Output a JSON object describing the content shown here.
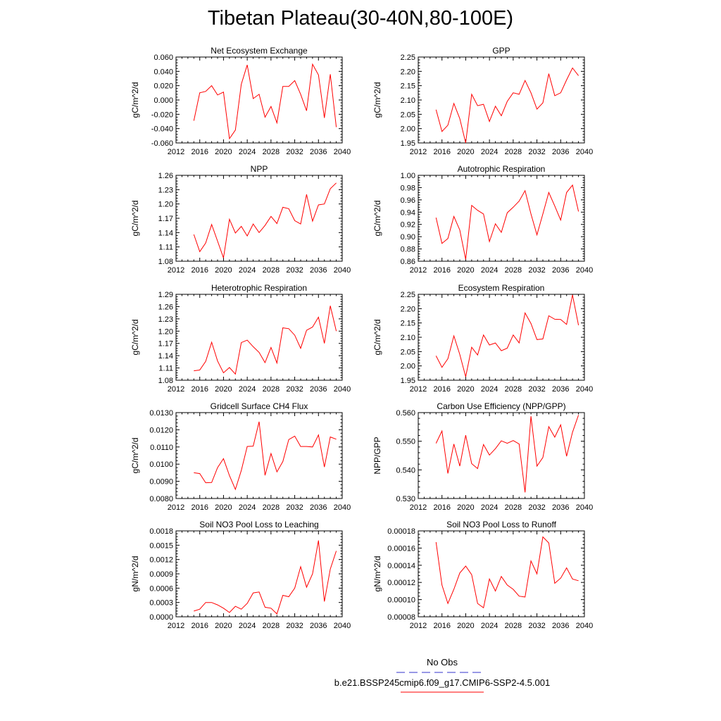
{
  "title": "Tibetan Plateau(30-40N,80-100E)",
  "legend": {
    "obs_label": "No Obs",
    "model_label": "b.e21.BSSP245cmip6.f09_g17.CMIP6-SSP2-4.5.001",
    "obs_color": "#3333cc",
    "model_color": "#ff0000"
  },
  "chart_data": [
    {
      "type": "line",
      "title": "Net Ecosystem Exchange",
      "ylabel": "gC/m^2/d",
      "xlim": [
        2012,
        2040
      ],
      "ylim": [
        -0.06,
        0.06
      ],
      "xticks": [
        "2012",
        "2016",
        "2020",
        "2024",
        "2028",
        "2032",
        "2036",
        "2040"
      ],
      "yticks": [
        "-0.060",
        "-0.040",
        "-0.020",
        "0.000",
        "0.020",
        "0.040",
        "0.060"
      ],
      "x": [
        2015,
        2016,
        2017,
        2018,
        2019,
        2020,
        2021,
        2022,
        2023,
        2024,
        2025,
        2026,
        2027,
        2028,
        2029,
        2030,
        2031,
        2032,
        2033,
        2034,
        2035,
        2036,
        2037,
        2038,
        2039
      ],
      "series": [
        {
          "values": [
            -0.029,
            0.01,
            0.012,
            0.02,
            0.007,
            0.011,
            -0.054,
            -0.042,
            0.022,
            0.049,
            0.002,
            0.008,
            -0.024,
            -0.009,
            -0.032,
            0.019,
            0.019,
            0.027,
            0.008,
            -0.015,
            0.05,
            0.035,
            -0.025,
            0.036,
            -0.038
          ],
          "color": "#ff0000"
        }
      ]
    },
    {
      "type": "line",
      "title": "GPP",
      "ylabel": "gC/m^2/d",
      "xlim": [
        2012,
        2040
      ],
      "ylim": [
        1.95,
        2.25
      ],
      "xticks": [
        "2012",
        "2016",
        "2020",
        "2024",
        "2028",
        "2032",
        "2036",
        "2040"
      ],
      "yticks": [
        "1.95",
        "2.00",
        "2.05",
        "2.10",
        "2.15",
        "2.20",
        "2.25"
      ],
      "x": [
        2015,
        2016,
        2017,
        2018,
        2019,
        2020,
        2021,
        2022,
        2023,
        2024,
        2025,
        2026,
        2027,
        2028,
        2029,
        2030,
        2031,
        2032,
        2033,
        2034,
        2035,
        2036,
        2037,
        2038,
        2039
      ],
      "series": [
        {
          "values": [
            2.066,
            1.99,
            2.012,
            2.088,
            2.035,
            1.95,
            2.12,
            2.08,
            2.085,
            2.025,
            2.078,
            2.045,
            2.095,
            2.125,
            2.12,
            2.168,
            2.125,
            2.068,
            2.09,
            2.192,
            2.115,
            2.125,
            2.17,
            2.212,
            2.185
          ],
          "color": "#ff0000"
        }
      ]
    },
    {
      "type": "line",
      "title": "NPP",
      "ylabel": "gC/m^2/d",
      "xlim": [
        2012,
        2040
      ],
      "ylim": [
        1.08,
        1.26
      ],
      "xticks": [
        "2012",
        "2016",
        "2020",
        "2024",
        "2028",
        "2032",
        "2036",
        "2040"
      ],
      "yticks": [
        "1.08",
        "1.11",
        "1.14",
        "1.17",
        "1.20",
        "1.23",
        "1.26"
      ],
      "x": [
        2015,
        2016,
        2017,
        2018,
        2019,
        2020,
        2021,
        2022,
        2023,
        2024,
        2025,
        2026,
        2027,
        2028,
        2029,
        2030,
        2031,
        2032,
        2033,
        2034,
        2035,
        2036,
        2037,
        2038,
        2039
      ],
      "series": [
        {
          "values": [
            1.136,
            1.1,
            1.118,
            1.157,
            1.122,
            1.087,
            1.168,
            1.139,
            1.153,
            1.133,
            1.158,
            1.14,
            1.155,
            1.174,
            1.159,
            1.193,
            1.19,
            1.165,
            1.158,
            1.22,
            1.164,
            1.198,
            1.2,
            1.232,
            1.244
          ],
          "color": "#ff0000"
        }
      ]
    },
    {
      "type": "line",
      "title": "Autotrophic Respiration",
      "ylabel": "gC/m^2/d",
      "xlim": [
        2012,
        2040
      ],
      "ylim": [
        0.86,
        1.0
      ],
      "xticks": [
        "2012",
        "2016",
        "2020",
        "2024",
        "2028",
        "2032",
        "2036",
        "2040"
      ],
      "yticks": [
        "0.86",
        "0.88",
        "0.90",
        "0.92",
        "0.94",
        "0.96",
        "0.98",
        "1.00"
      ],
      "x": [
        2015,
        2016,
        2017,
        2018,
        2019,
        2020,
        2021,
        2022,
        2023,
        2024,
        2025,
        2026,
        2027,
        2028,
        2029,
        2030,
        2031,
        2032,
        2033,
        2034,
        2035,
        2036,
        2037,
        2038,
        2039
      ],
      "series": [
        {
          "values": [
            0.931,
            0.889,
            0.897,
            0.933,
            0.911,
            0.863,
            0.951,
            0.943,
            0.937,
            0.892,
            0.921,
            0.907,
            0.939,
            0.948,
            0.958,
            0.975,
            0.937,
            0.903,
            0.937,
            0.972,
            0.95,
            0.927,
            0.972,
            0.984,
            0.941
          ],
          "color": "#ff0000"
        }
      ]
    },
    {
      "type": "line",
      "title": "Heterotrophic Respiration",
      "ylabel": "gC/m^2/d",
      "xlim": [
        2012,
        2040
      ],
      "ylim": [
        1.08,
        1.29
      ],
      "xticks": [
        "2012",
        "2016",
        "2020",
        "2024",
        "2028",
        "2032",
        "2036",
        "2040"
      ],
      "yticks": [
        "1.08",
        "1.11",
        "1.14",
        "1.17",
        "1.20",
        "1.23",
        "1.26",
        "1.29"
      ],
      "x": [
        2015,
        2016,
        2017,
        2018,
        2019,
        2020,
        2021,
        2022,
        2023,
        2024,
        2025,
        2026,
        2027,
        2028,
        2029,
        2030,
        2031,
        2032,
        2033,
        2034,
        2035,
        2036,
        2037,
        2038,
        2039
      ],
      "series": [
        {
          "values": [
            1.103,
            1.105,
            1.126,
            1.173,
            1.127,
            1.098,
            1.111,
            1.095,
            1.172,
            1.178,
            1.162,
            1.148,
            1.123,
            1.16,
            1.122,
            1.208,
            1.206,
            1.19,
            1.158,
            1.202,
            1.21,
            1.234,
            1.17,
            1.262,
            1.2
          ],
          "color": "#ff0000"
        }
      ]
    },
    {
      "type": "line",
      "title": "Ecosystem Respiration",
      "ylabel": "gC/m^2/d",
      "xlim": [
        2012,
        2040
      ],
      "ylim": [
        1.95,
        2.25
      ],
      "xticks": [
        "2012",
        "2016",
        "2020",
        "2024",
        "2028",
        "2032",
        "2036",
        "2040"
      ],
      "yticks": [
        "1.95",
        "2.00",
        "2.05",
        "2.10",
        "2.15",
        "2.20",
        "2.25"
      ],
      "x": [
        2015,
        2016,
        2017,
        2018,
        2019,
        2020,
        2021,
        2022,
        2023,
        2024,
        2025,
        2026,
        2027,
        2028,
        2029,
        2030,
        2031,
        2032,
        2033,
        2034,
        2035,
        2036,
        2037,
        2038,
        2039
      ],
      "series": [
        {
          "values": [
            2.035,
            1.995,
            2.025,
            2.105,
            2.04,
            1.962,
            2.065,
            2.038,
            2.108,
            2.073,
            2.08,
            2.053,
            2.062,
            2.108,
            2.08,
            2.185,
            2.148,
            2.092,
            2.094,
            2.175,
            2.163,
            2.162,
            2.145,
            2.248,
            2.142
          ],
          "color": "#ff0000"
        }
      ]
    },
    {
      "type": "line",
      "title": "Gridcell Surface CH4 Flux",
      "ylabel": "gC/m^2/d",
      "xlim": [
        2012,
        2040
      ],
      "ylim": [
        0.008,
        0.013
      ],
      "xticks": [
        "2012",
        "2016",
        "2020",
        "2024",
        "2028",
        "2032",
        "2036",
        "2040"
      ],
      "yticks": [
        "0.0080",
        "0.0090",
        "0.0100",
        "0.0110",
        "0.0120",
        "0.0130"
      ],
      "x": [
        2015,
        2016,
        2017,
        2018,
        2019,
        2020,
        2021,
        2022,
        2023,
        2024,
        2025,
        2026,
        2027,
        2028,
        2029,
        2030,
        2031,
        2032,
        2033,
        2034,
        2035,
        2036,
        2037,
        2038,
        2039
      ],
      "series": [
        {
          "values": [
            0.0095,
            0.00945,
            0.00892,
            0.00893,
            0.0098,
            0.01032,
            0.00933,
            0.00853,
            0.00963,
            0.01103,
            0.01105,
            0.01247,
            0.00935,
            0.01062,
            0.00955,
            0.01015,
            0.01143,
            0.01163,
            0.01103,
            0.01103,
            0.011,
            0.0117,
            0.00983,
            0.01158,
            0.01145
          ],
          "color": "#ff0000"
        }
      ]
    },
    {
      "type": "line",
      "title": "Carbon Use Efficiency (NPP/GPP)",
      "ylabel": "NPP/GPP",
      "xlim": [
        2012,
        2040
      ],
      "ylim": [
        0.53,
        0.565
      ],
      "xticks": [
        "2012",
        "2016",
        "2020",
        "2024",
        "2028",
        "2032",
        "2036",
        "2040"
      ],
      "yticks": [
        "0.530",
        "0.540",
        "0.550",
        "0.560"
      ],
      "x": [
        2015,
        2016,
        2017,
        2018,
        2019,
        2020,
        2021,
        2022,
        2023,
        2024,
        2025,
        2026,
        2027,
        2028,
        2029,
        2030,
        2031,
        2032,
        2033,
        2034,
        2035,
        2036,
        2037,
        2038,
        2039
      ],
      "series": [
        {
          "values": [
            0.5525,
            0.5575,
            0.5402,
            0.5522,
            0.5432,
            0.5558,
            0.5442,
            0.5422,
            0.552,
            0.5477,
            0.5503,
            0.5535,
            0.5525,
            0.5536,
            0.5522,
            0.5325,
            0.5635,
            0.5432,
            0.5467,
            0.5593,
            0.555,
            0.56,
            0.5472,
            0.557,
            0.564
          ],
          "color": "#ff0000"
        }
      ]
    },
    {
      "type": "line",
      "title": "Soil NO3 Pool Loss to Leaching",
      "ylabel": "gN/m^2/d",
      "xlim": [
        2012,
        2040
      ],
      "ylim": [
        0.0,
        0.0018
      ],
      "xticks": [
        "2012",
        "2016",
        "2020",
        "2024",
        "2028",
        "2032",
        "2036",
        "2040"
      ],
      "yticks": [
        "0.0000",
        "0.0003",
        "0.0006",
        "0.0009",
        "0.0012",
        "0.0015",
        "0.0018"
      ],
      "x": [
        2015,
        2016,
        2017,
        2018,
        2019,
        2020,
        2021,
        2022,
        2023,
        2024,
        2025,
        2026,
        2027,
        2028,
        2029,
        2030,
        2031,
        2032,
        2033,
        2034,
        2035,
        2036,
        2037,
        2038,
        2039
      ],
      "series": [
        {
          "values": [
            0.00012,
            0.00016,
            0.0003,
            0.0003,
            0.00025,
            0.00018,
            9e-05,
            0.00022,
            0.00016,
            0.00028,
            0.0005,
            0.00052,
            0.0002,
            0.00018,
            6e-05,
            0.00045,
            0.00042,
            0.0006,
            0.00105,
            0.00062,
            0.0009,
            0.0016,
            0.00032,
            0.001,
            0.00138
          ],
          "color": "#ff0000"
        }
      ]
    },
    {
      "type": "line",
      "title": "Soil NO3 Pool Loss to Runoff",
      "ylabel": "gN/m^2/d",
      "xlim": [
        2012,
        2040
      ],
      "ylim": [
        8e-05,
        0.00018
      ],
      "xticks": [
        "2012",
        "2016",
        "2020",
        "2024",
        "2028",
        "2032",
        "2036",
        "2040"
      ],
      "yticks": [
        "0.00008",
        "0.00010",
        "0.00012",
        "0.00014",
        "0.00016",
        "0.00018"
      ],
      "x": [
        2015,
        2016,
        2017,
        2018,
        2019,
        2020,
        2021,
        2022,
        2023,
        2024,
        2025,
        2026,
        2027,
        2028,
        2029,
        2030,
        2031,
        2032,
        2033,
        2034,
        2035,
        2036,
        2037,
        2038,
        2039
      ],
      "series": [
        {
          "values": [
            0.000167,
            0.000117,
            9.55e-05,
            0.000112,
            0.000131,
            0.000139,
            0.000129,
            9.55e-05,
            9.05e-05,
            0.000124,
            0.00011,
            0.000127,
            0.000117,
            0.000112,
            0.000104,
            0.000103,
            0.000145,
            0.00013,
            0.000173,
            0.000166,
            0.000119,
            0.000125,
            0.000137,
            0.000124,
            0.000122
          ],
          "color": "#ff0000"
        }
      ]
    }
  ]
}
